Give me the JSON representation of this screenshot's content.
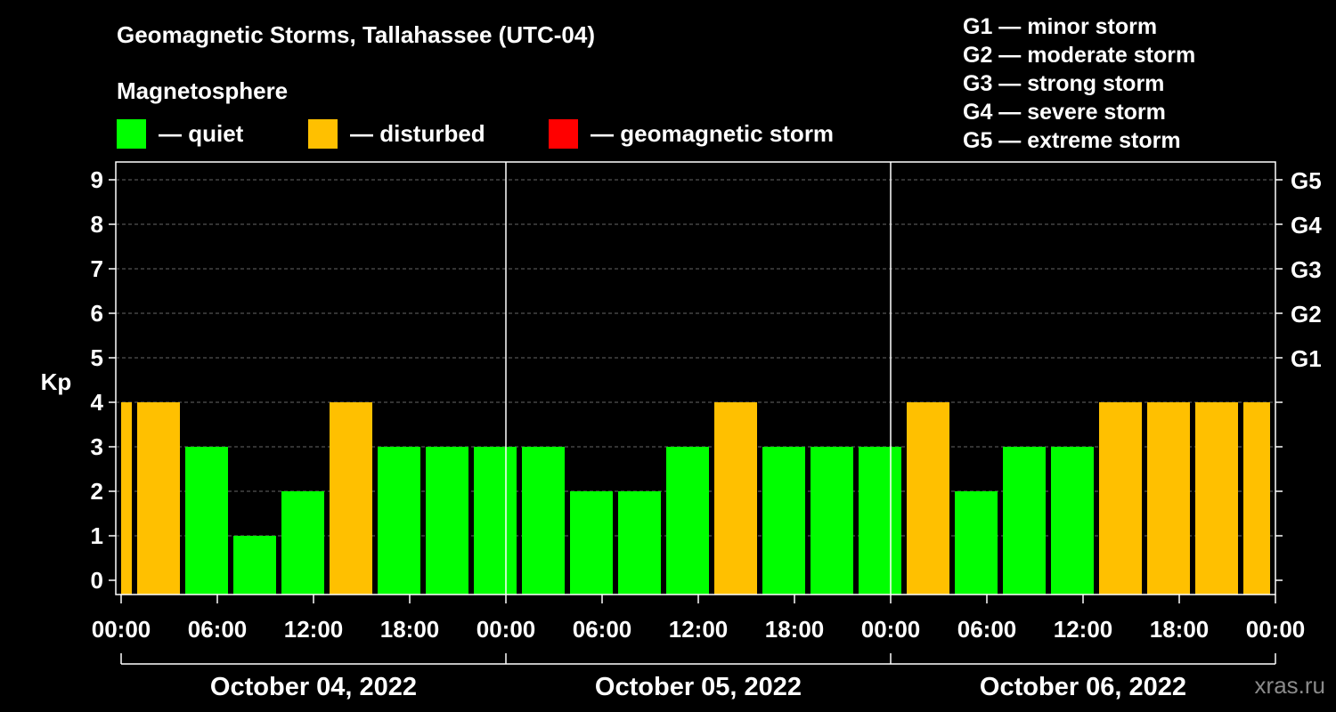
{
  "chart_data": {
    "type": "bar",
    "title": "Geomagnetic Storms, Tallahassee (UTC-04)",
    "subtitle": "Magnetosphere",
    "ylabel": "Kp",
    "ylim": [
      0,
      9
    ],
    "y_ticks": [
      "0",
      "1",
      "2",
      "3",
      "4",
      "5",
      "6",
      "7",
      "8",
      "9"
    ],
    "g_ticks": [
      {
        "kp": 5,
        "label": "G1"
      },
      {
        "kp": 6,
        "label": "G2"
      },
      {
        "kp": 7,
        "label": "G3"
      },
      {
        "kp": 8,
        "label": "G4"
      },
      {
        "kp": 9,
        "label": "G5"
      }
    ],
    "x_ticks": [
      "00:00",
      "06:00",
      "12:00",
      "18:00",
      "00:00",
      "06:00",
      "12:00",
      "18:00",
      "00:00",
      "06:00",
      "12:00",
      "18:00",
      "00:00"
    ],
    "days": [
      "October 04, 2022",
      "October 05, 2022",
      "October 06, 2022"
    ],
    "bar_interval_hours": 3,
    "first_bar_start_hour": -2,
    "values": [
      4,
      4,
      3,
      1,
      2,
      4,
      3,
      3,
      3,
      3,
      2,
      2,
      3,
      4,
      3,
      3,
      3,
      4,
      2,
      3,
      3,
      4,
      4,
      4,
      4
    ],
    "colors": {
      "quiet": "#00ff00",
      "disturbed": "#ffc000",
      "storm": "#ff0000"
    },
    "legend": [
      {
        "label": "— quiet",
        "color": "#00ff00"
      },
      {
        "label": "— disturbed",
        "color": "#ffc000"
      },
      {
        "label": "— geomagnetic storm",
        "color": "#ff0000"
      }
    ],
    "storm_scale": [
      "G1 — minor storm",
      "G2 — moderate storm",
      "G3 — strong storm",
      "G4 — severe storm",
      "G5 — extreme storm"
    ]
  },
  "watermark": "xras.ru"
}
